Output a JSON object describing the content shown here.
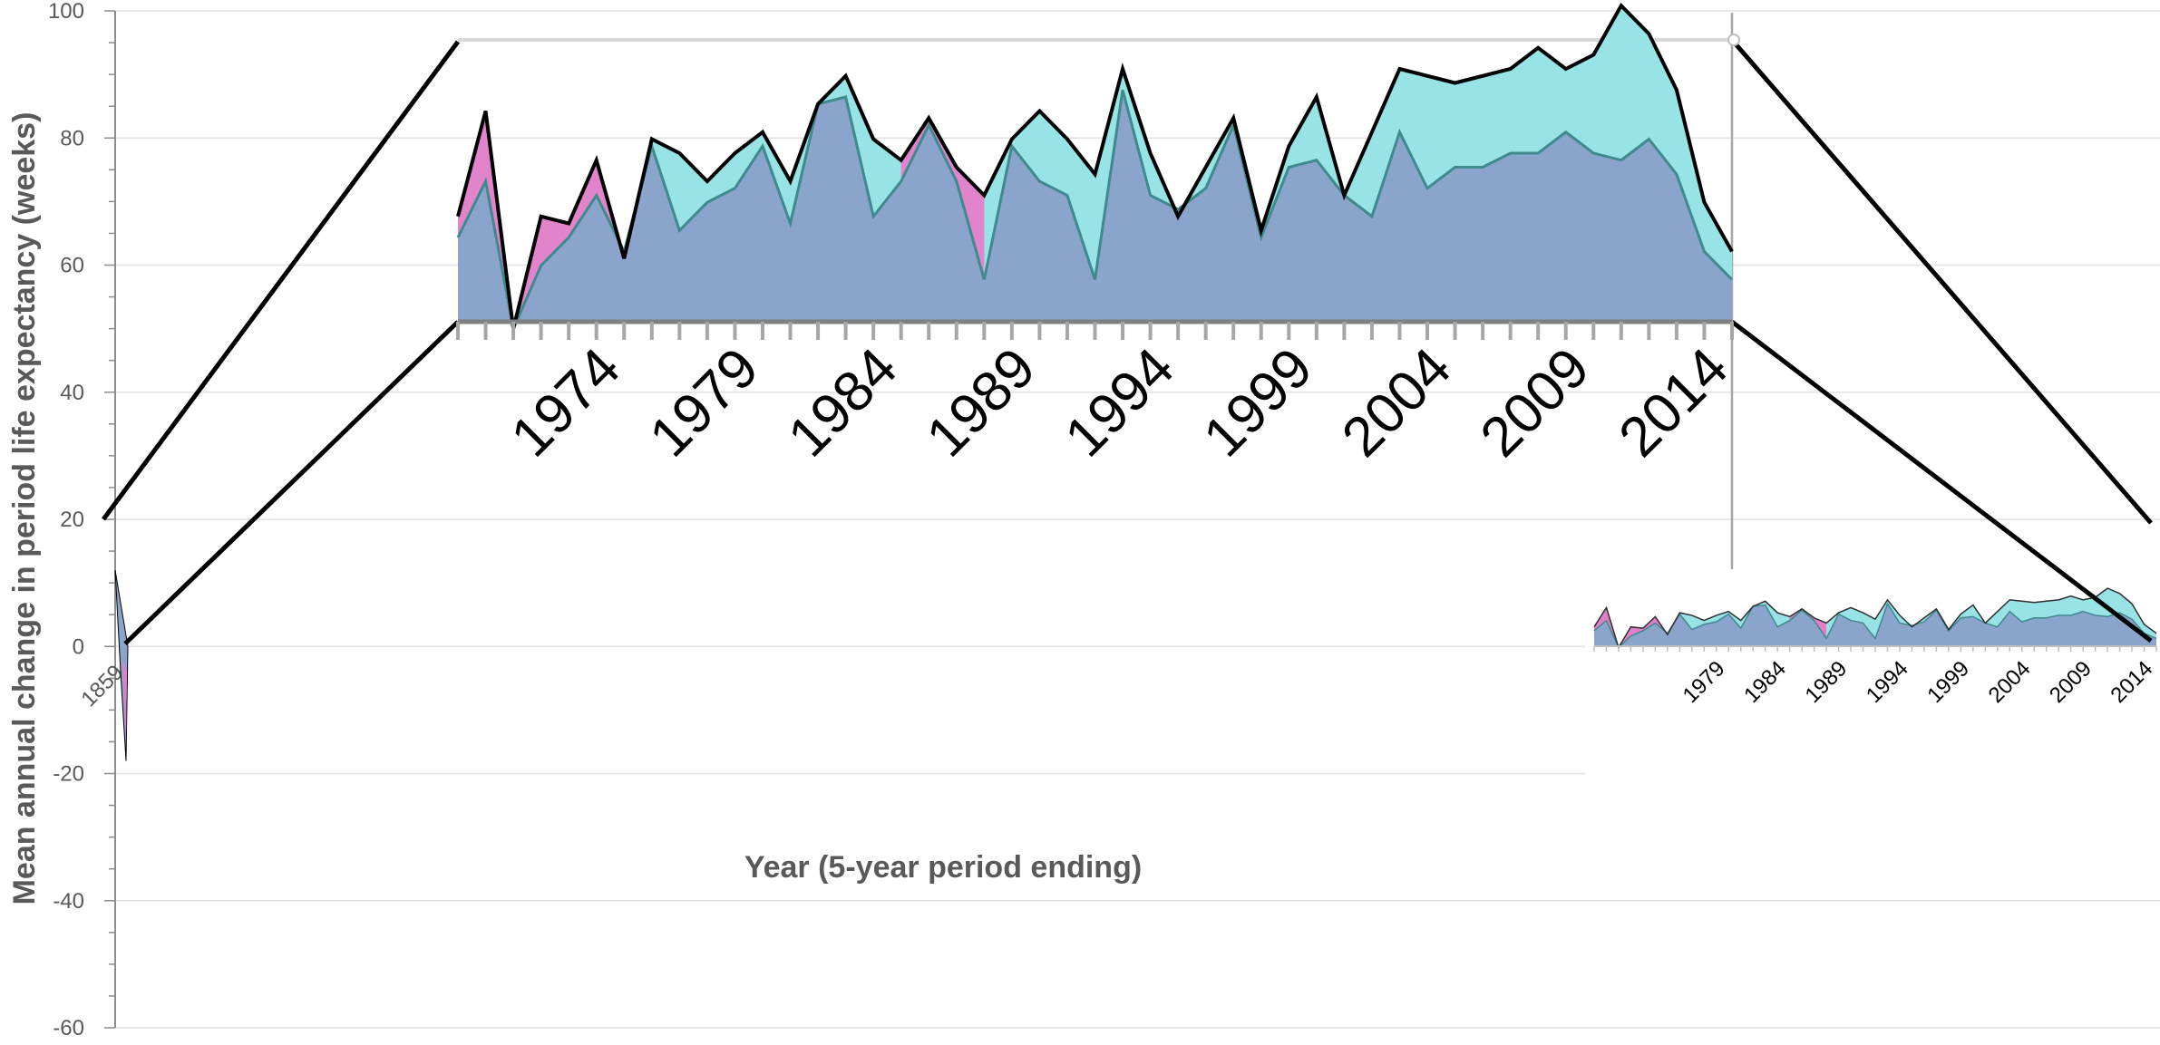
{
  "chart_data": {
    "type": "area",
    "ylabel": "Mean annual change in period life expectancy (weeks)",
    "xlabel": "Year (5-year period ending)",
    "ylim": [
      -60,
      100
    ],
    "yticks": [
      100,
      80,
      60,
      40,
      20,
      0,
      -20,
      -40,
      -60
    ],
    "first_x_tick_label": "1859",
    "grid": true,
    "colors": {
      "base": "#8aa4cc",
      "top": "#97e3e5",
      "pink": "#e57ec9",
      "base_line": "#3f8a8c",
      "outline": "#000000",
      "axis": "#8c8c8c",
      "grid": "#e2e2e2"
    },
    "zoom_inset": {
      "x_tick_labels": [
        "1974",
        "1979",
        "1984",
        "1989",
        "1994",
        "1999",
        "2004",
        "2009",
        "2014"
      ],
      "years": [
        1970,
        1971,
        1972,
        1973,
        1974,
        1975,
        1976,
        1977,
        1978,
        1979,
        1980,
        1981,
        1982,
        1983,
        1984,
        1985,
        1986,
        1987,
        1988,
        1989,
        1990,
        1991,
        1992,
        1993,
        1994,
        1995,
        1996,
        1997,
        1998,
        1999,
        2000,
        2001,
        2002,
        2003,
        2004,
        2005,
        2006,
        2007,
        2008,
        2009,
        2010,
        2011,
        2012,
        2013,
        2014,
        2015,
        2016
      ],
      "base_series": [
        63,
        71,
        50,
        59,
        63,
        69,
        61,
        76,
        64,
        68,
        70,
        76,
        65,
        82,
        83,
        66,
        71,
        79,
        71,
        57,
        76,
        71,
        69,
        57,
        84,
        69,
        67,
        70,
        79,
        63,
        73,
        74,
        69,
        66,
        78,
        70,
        73,
        73,
        75,
        75,
        78,
        75,
        74,
        77,
        72,
        61,
        57
      ],
      "total_series": [
        66,
        81,
        50,
        66,
        65,
        74,
        60,
        77,
        75,
        71,
        75,
        78,
        71,
        82,
        86,
        77,
        74,
        80,
        73,
        69,
        77,
        81,
        77,
        72,
        87,
        75,
        66,
        73,
        80,
        64,
        76,
        83,
        69,
        78,
        87,
        86,
        85,
        86,
        87,
        90,
        87,
        89,
        96,
        92,
        84,
        68,
        61
      ]
    },
    "mini_inset": {
      "x_tick_labels": [
        "1979",
        "1984",
        "1989",
        "1994",
        "1999",
        "2004",
        "2009",
        "2014"
      ]
    }
  }
}
